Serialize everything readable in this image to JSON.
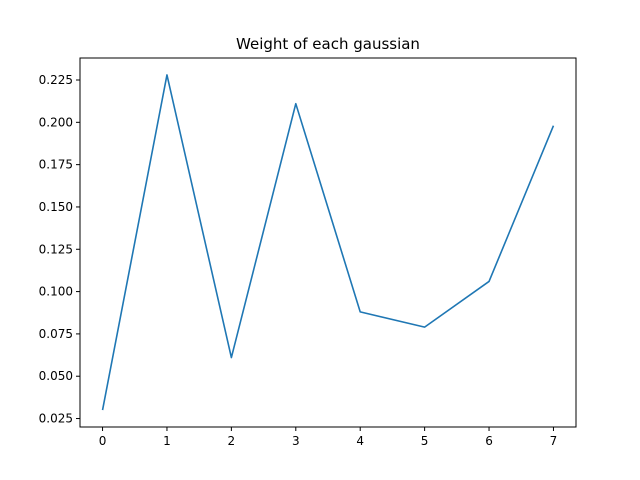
{
  "chart_data": {
    "type": "line",
    "title": "Weight of each gaussian",
    "xlabel": "",
    "ylabel": "",
    "x": [
      0,
      1,
      2,
      3,
      4,
      5,
      6,
      7
    ],
    "series": [
      {
        "values": [
          0.03,
          0.228,
          0.061,
          0.211,
          0.088,
          0.079,
          0.106,
          0.198
        ],
        "color": "#1f77b4"
      }
    ],
    "xlim": [
      -0.35,
      7.35
    ],
    "ylim": [
      0.02,
      0.238
    ],
    "xticks": [
      0,
      1,
      2,
      3,
      4,
      5,
      6,
      7
    ],
    "xtick_labels": [
      "0",
      "1",
      "2",
      "3",
      "4",
      "5",
      "6",
      "7"
    ],
    "yticks": [
      0.025,
      0.05,
      0.075,
      0.1,
      0.125,
      0.15,
      0.175,
      0.2,
      0.225
    ],
    "ytick_labels": [
      "0.025",
      "0.050",
      "0.075",
      "0.100",
      "0.125",
      "0.150",
      "0.175",
      "0.200",
      "0.225"
    ],
    "grid": false,
    "legend": "none"
  }
}
